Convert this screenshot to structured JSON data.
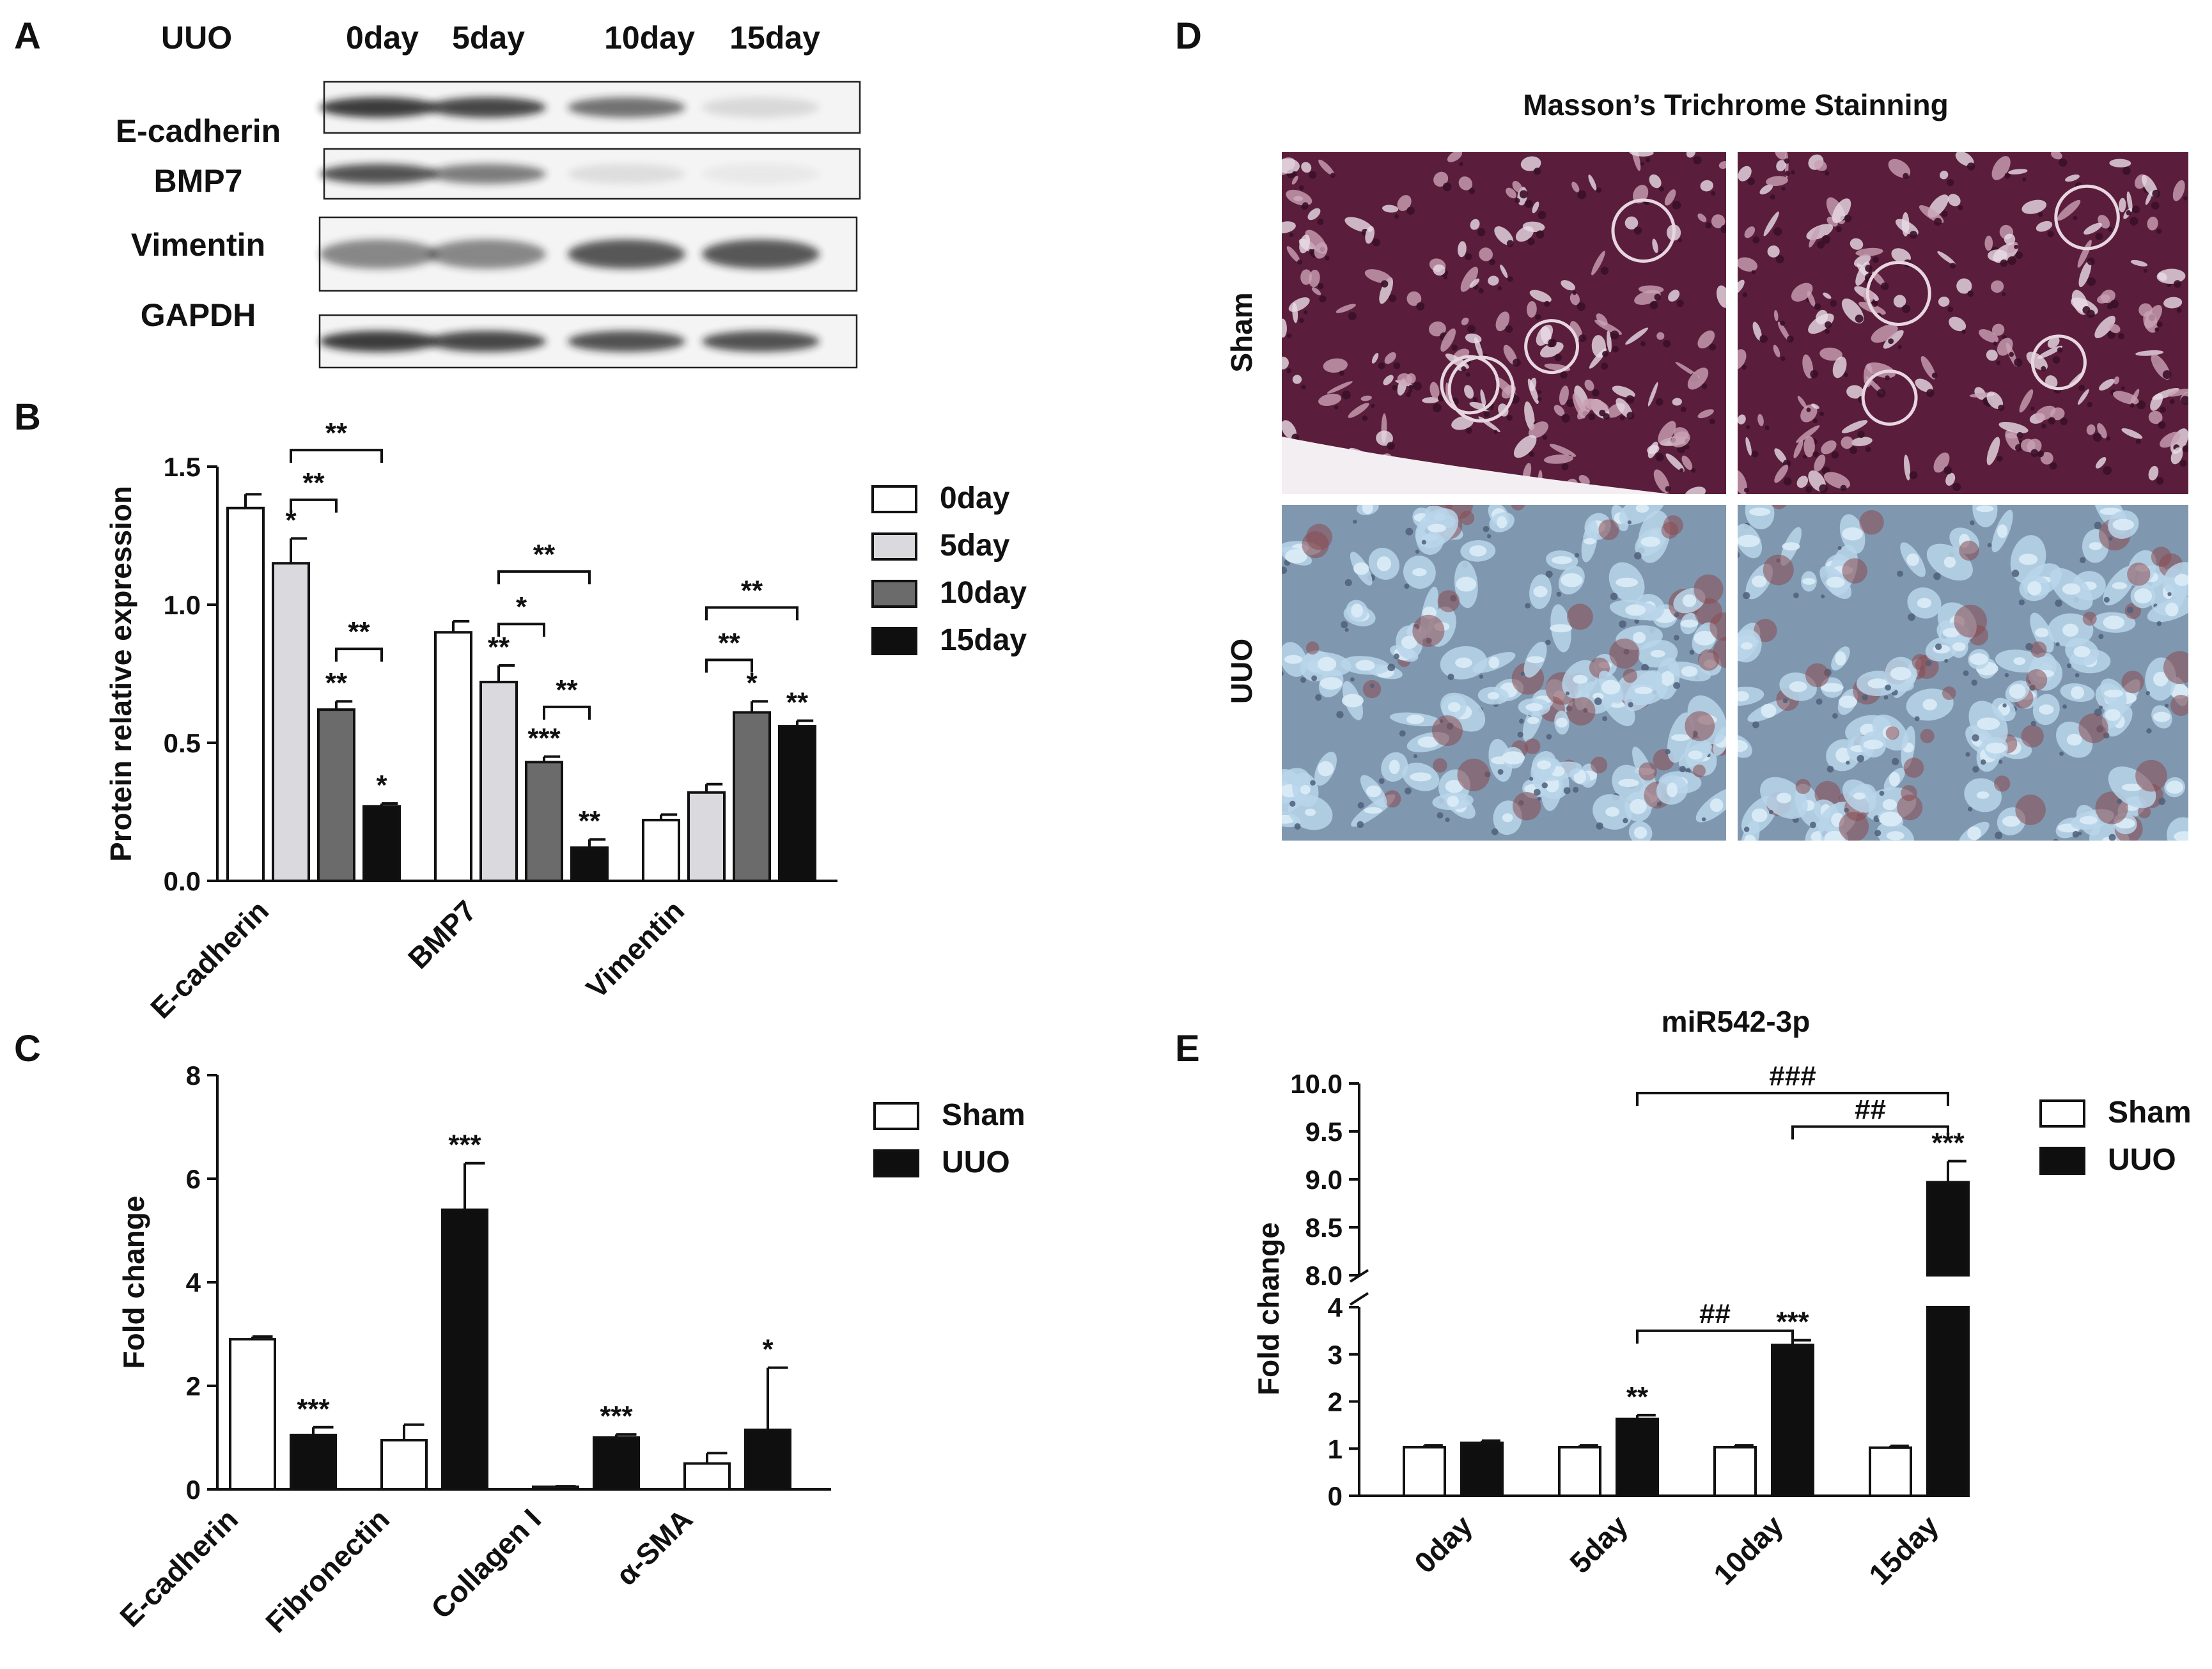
{
  "panels": {
    "A": {
      "letter": "A",
      "condition_label": "UUO",
      "lanes": [
        "0day",
        "5day",
        "10day",
        "15day"
      ],
      "blots": [
        {
          "name": "E-cadherin",
          "intensities": [
            0.85,
            0.8,
            0.6,
            0.12
          ]
        },
        {
          "name": "BMP7",
          "intensities": [
            0.75,
            0.55,
            0.1,
            0.04
          ]
        },
        {
          "name": "Vimentin",
          "intensities": [
            0.5,
            0.5,
            0.72,
            0.72
          ]
        },
        {
          "name": "GAPDH",
          "intensities": [
            0.85,
            0.8,
            0.75,
            0.75
          ]
        }
      ]
    },
    "B": {
      "letter": "B"
    },
    "C": {
      "letter": "C"
    },
    "D": {
      "letter": "D",
      "title": "Masson’s Trichrome Stainning",
      "rows": [
        "Sham",
        "UUO"
      ],
      "colors": {
        "sham_base": "#5a1e3c",
        "sham_dark": "#3a0f28",
        "sham_light": "#c9a0b4",
        "uuo_base": "#7f98b0",
        "uuo_dark": "#4f5f7a",
        "uuo_light": "#b9d5ea",
        "uuo_red": "#8a4a50"
      }
    },
    "E": {
      "letter": "E"
    }
  },
  "chart_data": [
    {
      "id": "B",
      "type": "bar",
      "ylabel": "Protein relative expression",
      "categories": [
        "E-cadherin",
        "BMP7",
        "Vimentin"
      ],
      "series": [
        {
          "name": "0day",
          "values": [
            1.35,
            0.9,
            0.22
          ],
          "errors": [
            0.05,
            0.04,
            0.02
          ],
          "color": "#ffffff"
        },
        {
          "name": "5day",
          "values": [
            1.15,
            0.72,
            0.32
          ],
          "errors": [
            0.09,
            0.06,
            0.03
          ],
          "color": "#d9d9de"
        },
        {
          "name": "10day",
          "values": [
            0.62,
            0.43,
            0.61
          ],
          "errors": [
            0.03,
            0.02,
            0.04
          ],
          "color": "#6b6b6b"
        },
        {
          "name": "15day",
          "values": [
            0.27,
            0.12,
            0.56
          ],
          "errors": [
            0.01,
            0.03,
            0.02
          ],
          "color": "#0f0f0f"
        }
      ],
      "ylim": [
        0,
        1.5
      ],
      "yticks": [
        "0.0",
        "0.5",
        "1.0",
        "1.5"
      ],
      "stars": [
        [
          "",
          "*",
          "**",
          "*"
        ],
        [
          "",
          "**",
          "***",
          "**"
        ],
        [
          "",
          "",
          "*",
          "**"
        ]
      ],
      "brackets": [
        {
          "group": 0,
          "from": 1,
          "to": 3,
          "y": 1.56,
          "label": "**"
        },
        {
          "group": 0,
          "from": 1,
          "to": 2,
          "y": 1.38,
          "label": "**"
        },
        {
          "group": 0,
          "from": 2,
          "to": 3,
          "y": 0.84,
          "label": "**"
        },
        {
          "group": 1,
          "from": 1,
          "to": 3,
          "y": 1.12,
          "label": "**"
        },
        {
          "group": 1,
          "from": 1,
          "to": 2,
          "y": 0.93,
          "label": "*"
        },
        {
          "group": 1,
          "from": 2,
          "to": 3,
          "y": 0.63,
          "label": "**"
        },
        {
          "group": 2,
          "from": 1,
          "to": 3,
          "y": 0.99,
          "label": "**"
        },
        {
          "group": 2,
          "from": 1,
          "to": 2,
          "y": 0.8,
          "label": "**"
        }
      ],
      "legend": "right"
    },
    {
      "id": "C",
      "type": "bar",
      "ylabel": "Fold change",
      "categories": [
        "E-cadherin",
        "Fibronectin",
        "Collagen I",
        "α-SMA"
      ],
      "series": [
        {
          "name": "Sham",
          "values": [
            2.9,
            0.95,
            0.05,
            0.5
          ],
          "errors": [
            0.05,
            0.3,
            0.01,
            0.2
          ],
          "color": "#ffffff"
        },
        {
          "name": "UUO",
          "values": [
            1.05,
            5.4,
            1.0,
            1.15
          ],
          "errors": [
            0.15,
            0.9,
            0.06,
            1.2
          ],
          "color": "#0f0f0f"
        }
      ],
      "ylim": [
        0,
        8
      ],
      "yticks": [
        "0",
        "2",
        "4",
        "6",
        "8"
      ],
      "stars": [
        "***",
        "***",
        "***",
        "*"
      ],
      "legend": "right"
    },
    {
      "id": "E",
      "type": "bar",
      "title": "miR542-3p",
      "ylabel": "Fold change",
      "categories": [
        "0day",
        "5day",
        "10day",
        "15day"
      ],
      "series": [
        {
          "name": "Sham",
          "values": [
            1.03,
            1.03,
            1.03,
            1.02
          ],
          "errors": [
            0.04,
            0.04,
            0.04,
            0.04
          ],
          "color": "#ffffff"
        },
        {
          "name": "UUO",
          "values": [
            1.12,
            1.63,
            3.2,
            8.97
          ],
          "errors": [
            0.05,
            0.08,
            0.1,
            0.22
          ],
          "color": "#0f0f0f"
        }
      ],
      "ylim_lower": [
        0,
        4
      ],
      "ylim_upper": [
        8.0,
        10.0
      ],
      "yticks_lower": [
        "0",
        "1",
        "2",
        "3",
        "4"
      ],
      "yticks_upper": [
        "8.0",
        "8.5",
        "9.0",
        "9.5",
        "10.0"
      ],
      "stars": [
        "",
        "**",
        "***",
        "***"
      ],
      "brackets": [
        {
          "from": 1,
          "to": 3,
          "y": 9.9,
          "label": "###"
        },
        {
          "from": 2,
          "to": 3,
          "y": 9.55,
          "label": "##"
        },
        {
          "from": 1,
          "to": 2,
          "y": 3.5,
          "label": "##"
        }
      ],
      "legend": "right"
    }
  ]
}
